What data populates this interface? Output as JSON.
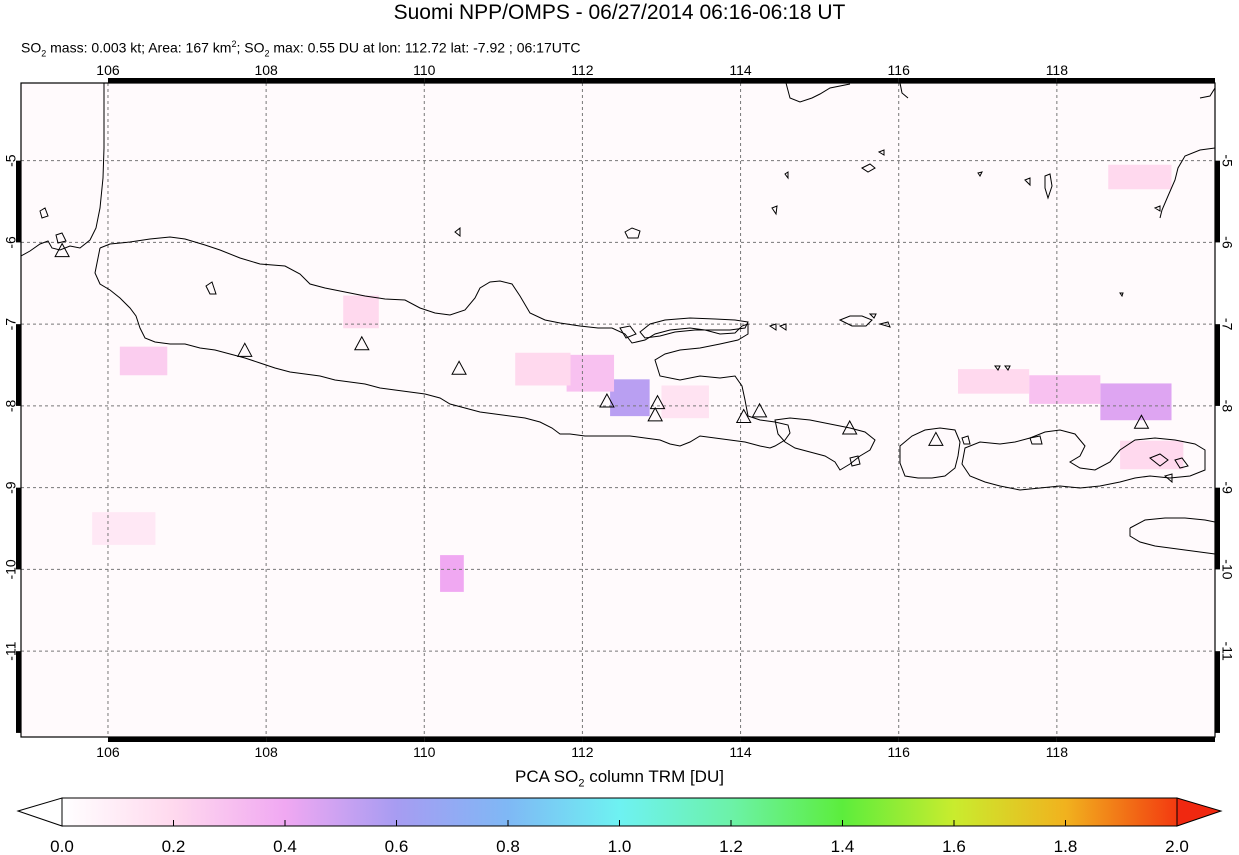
{
  "title": "Suomi NPP/OMPS - 06/27/2014 06:16-06:18 UT",
  "subtitle": {
    "p1": "SO",
    "p1_sub": "2",
    "p2": " mass: 0.003 kt; Area: 167 km",
    "p2_sup": "2",
    "p3": "; SO",
    "p3_sub": "2",
    "p4": " max: 0.55 DU at lon: 112.72 lat: -7.92 ; 06:17UTC"
  },
  "map": {
    "lon_range": [
      104.9,
      120.0
    ],
    "lat_range": [
      -12.05,
      -4.05
    ],
    "lon_ticks": [
      "106",
      "108",
      "110",
      "112",
      "114",
      "116",
      "118"
    ],
    "lat_ticks": [
      "-5",
      "-6",
      "-7",
      "-8",
      "-9",
      "-10",
      "-11"
    ],
    "grid": true,
    "frame_color": "#000000",
    "coast_color": "#000000",
    "volcano_symbol": "triangle-outline",
    "volcanoes": [
      {
        "lon": 105.42,
        "lat": -6.1
      },
      {
        "lon": 107.73,
        "lat": -7.32
      },
      {
        "lon": 109.21,
        "lat": -7.24
      },
      {
        "lon": 110.44,
        "lat": -7.54
      },
      {
        "lon": 112.31,
        "lat": -7.94
      },
      {
        "lon": 112.95,
        "lat": -7.96
      },
      {
        "lon": 112.92,
        "lat": -8.11
      },
      {
        "lon": 114.04,
        "lat": -8.13
      },
      {
        "lon": 114.24,
        "lat": -8.06
      },
      {
        "lon": 115.38,
        "lat": -8.27
      },
      {
        "lon": 116.47,
        "lat": -8.41
      },
      {
        "lon": 119.07,
        "lat": -8.2
      }
    ],
    "so2_pixels": [
      {
        "lon": 112.6,
        "lat": -7.9,
        "w": 0.5,
        "h": 0.45,
        "du": 0.55
      },
      {
        "lon": 112.1,
        "lat": -7.6,
        "w": 0.6,
        "h": 0.45,
        "du": 0.3
      },
      {
        "lon": 111.5,
        "lat": -7.55,
        "w": 0.7,
        "h": 0.4,
        "du": 0.2
      },
      {
        "lon": 110.35,
        "lat": -10.05,
        "w": 0.3,
        "h": 0.45,
        "du": 0.4
      },
      {
        "lon": 106.45,
        "lat": -7.45,
        "w": 0.6,
        "h": 0.35,
        "du": 0.25
      },
      {
        "lon": 109.2,
        "lat": -6.85,
        "w": 0.45,
        "h": 0.4,
        "du": 0.2
      },
      {
        "lon": 119.0,
        "lat": -7.95,
        "w": 0.9,
        "h": 0.45,
        "du": 0.45
      },
      {
        "lon": 118.1,
        "lat": -7.8,
        "w": 0.9,
        "h": 0.35,
        "du": 0.3
      },
      {
        "lon": 117.2,
        "lat": -7.7,
        "w": 0.9,
        "h": 0.3,
        "du": 0.2
      },
      {
        "lon": 119.05,
        "lat": -5.2,
        "w": 0.8,
        "h": 0.3,
        "du": 0.2
      },
      {
        "lon": 113.3,
        "lat": -7.95,
        "w": 0.6,
        "h": 0.4,
        "du": 0.15
      },
      {
        "lon": 106.2,
        "lat": -9.5,
        "w": 0.8,
        "h": 0.4,
        "du": 0.12
      },
      {
        "lon": 119.2,
        "lat": -8.6,
        "w": 0.8,
        "h": 0.35,
        "du": 0.2
      }
    ]
  },
  "colorbar": {
    "title_p1": "PCA SO",
    "title_sub": "2",
    "title_p2": " column TRM [DU]",
    "labels": [
      "0.0",
      "0.2",
      "0.4",
      "0.6",
      "0.8",
      "1.0",
      "1.2",
      "1.4",
      "1.6",
      "1.8",
      "2.0"
    ],
    "range": [
      0.0,
      2.0
    ],
    "stops": [
      {
        "v": 0.0,
        "c": "#ffffff"
      },
      {
        "v": 0.2,
        "c": "#ffd9ee"
      },
      {
        "v": 0.4,
        "c": "#f0a8f2"
      },
      {
        "v": 0.6,
        "c": "#a79cf2"
      },
      {
        "v": 0.8,
        "c": "#7fb8f5"
      },
      {
        "v": 1.0,
        "c": "#6ef2f2"
      },
      {
        "v": 1.2,
        "c": "#6cf2a8"
      },
      {
        "v": 1.4,
        "c": "#5ced3c"
      },
      {
        "v": 1.6,
        "c": "#c9ec2e"
      },
      {
        "v": 1.8,
        "c": "#f1b21e"
      },
      {
        "v": 2.0,
        "c": "#f33a10"
      }
    ],
    "under_color": "#ffffff",
    "over_color": "#f02810"
  }
}
